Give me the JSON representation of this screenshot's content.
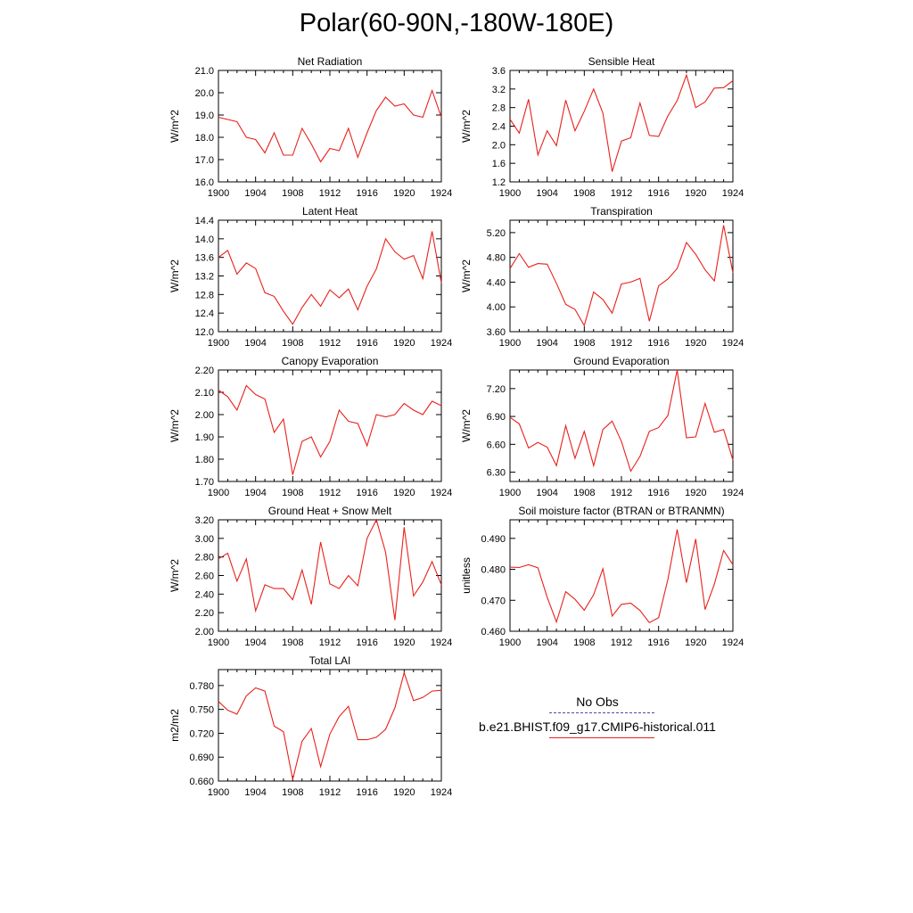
{
  "page": {
    "title": "Polar(60-90N,-180W-180E)"
  },
  "legend": {
    "obs_label": "No Obs",
    "model_label": "b.e21.BHIST.f09_g17.CMIP6-historical.011",
    "model_color": "#e8211c",
    "obs_color": "#4a4aa8"
  },
  "chart_data": [
    {
      "type": "line",
      "title": "Net Radiation",
      "ylabel": "W/m^2",
      "xlim": [
        1900,
        1924
      ],
      "ylim": [
        16.0,
        21.0
      ],
      "xticks": [
        1900,
        1904,
        1908,
        1912,
        1916,
        1920,
        1924
      ],
      "yticks": [
        "16.0",
        "17.0",
        "18.0",
        "19.0",
        "20.0",
        "21.0"
      ],
      "x": [
        1900,
        1901,
        1902,
        1903,
        1904,
        1905,
        1906,
        1907,
        1908,
        1909,
        1910,
        1911,
        1912,
        1913,
        1914,
        1915,
        1916,
        1917,
        1918,
        1919,
        1920,
        1921,
        1922,
        1923,
        1924
      ],
      "series": [
        {
          "color": "#e8211c",
          "values": [
            18.9,
            18.8,
            18.7,
            18.0,
            17.9,
            17.3,
            18.2,
            17.2,
            17.2,
            18.4,
            17.7,
            16.9,
            17.5,
            17.4,
            18.4,
            17.1,
            18.2,
            19.2,
            19.8,
            19.4,
            19.5,
            19.0,
            18.9,
            20.1,
            18.9
          ]
        }
      ]
    },
    {
      "type": "line",
      "title": "Sensible Heat",
      "ylabel": "W/m^2",
      "xlim": [
        1900,
        1924
      ],
      "ylim": [
        1.2,
        3.6
      ],
      "xticks": [
        1900,
        1904,
        1908,
        1912,
        1916,
        1920,
        1924
      ],
      "yticks": [
        "1.2",
        "1.6",
        "2.0",
        "2.4",
        "2.8",
        "3.2",
        "3.6"
      ],
      "x": [
        1900,
        1901,
        1902,
        1903,
        1904,
        1905,
        1906,
        1907,
        1908,
        1909,
        1910,
        1911,
        1912,
        1913,
        1914,
        1915,
        1916,
        1917,
        1918,
        1919,
        1920,
        1921,
        1922,
        1923,
        1924
      ],
      "series": [
        {
          "color": "#e8211c",
          "values": [
            2.55,
            2.25,
            2.98,
            1.78,
            2.3,
            1.98,
            2.96,
            2.3,
            2.72,
            3.2,
            2.68,
            1.42,
            2.08,
            2.15,
            2.9,
            2.2,
            2.18,
            2.62,
            2.95,
            3.5,
            2.8,
            2.92,
            3.22,
            3.23,
            3.38
          ]
        }
      ]
    },
    {
      "type": "line",
      "title": "Latent Heat",
      "ylabel": "W/m^2",
      "xlim": [
        1900,
        1924
      ],
      "ylim": [
        12.0,
        14.4
      ],
      "xticks": [
        1900,
        1904,
        1908,
        1912,
        1916,
        1920,
        1924
      ],
      "yticks": [
        "12.0",
        "12.4",
        "12.8",
        "13.2",
        "13.6",
        "14.0",
        "14.4"
      ],
      "x": [
        1900,
        1901,
        1902,
        1903,
        1904,
        1905,
        1906,
        1907,
        1908,
        1909,
        1910,
        1911,
        1912,
        1913,
        1914,
        1915,
        1916,
        1917,
        1918,
        1919,
        1920,
        1921,
        1922,
        1923,
        1924
      ],
      "series": [
        {
          "color": "#e8211c",
          "values": [
            13.6,
            13.75,
            13.24,
            13.48,
            13.36,
            12.84,
            12.76,
            12.44,
            12.16,
            12.52,
            12.8,
            12.55,
            12.9,
            12.73,
            12.92,
            12.47,
            12.98,
            13.35,
            14.0,
            13.72,
            13.56,
            13.64,
            13.14,
            14.16,
            13.05
          ]
        }
      ]
    },
    {
      "type": "line",
      "title": "Transpiration",
      "ylabel": "W/m^2",
      "xlim": [
        1900,
        1924
      ],
      "ylim": [
        3.6,
        5.4
      ],
      "xticks": [
        1900,
        1904,
        1908,
        1912,
        1916,
        1920,
        1924
      ],
      "yticks": [
        "3.60",
        "4.00",
        "4.40",
        "4.80",
        "5.20"
      ],
      "x": [
        1900,
        1901,
        1902,
        1903,
        1904,
        1905,
        1906,
        1907,
        1908,
        1909,
        1910,
        1911,
        1912,
        1913,
        1914,
        1915,
        1916,
        1917,
        1918,
        1919,
        1920,
        1921,
        1922,
        1923,
        1924
      ],
      "series": [
        {
          "color": "#e8211c",
          "values": [
            4.62,
            4.86,
            4.64,
            4.7,
            4.69,
            4.38,
            4.04,
            3.96,
            3.7,
            4.24,
            4.12,
            3.9,
            4.37,
            4.4,
            4.46,
            3.77,
            4.34,
            4.45,
            4.62,
            5.04,
            4.85,
            4.6,
            4.42,
            5.32,
            4.55
          ]
        }
      ]
    },
    {
      "type": "line",
      "title": "Canopy Evaporation",
      "ylabel": "W/m^2",
      "xlim": [
        1900,
        1924
      ],
      "ylim": [
        1.7,
        2.2
      ],
      "xticks": [
        1900,
        1904,
        1908,
        1912,
        1916,
        1920,
        1924
      ],
      "yticks": [
        "1.70",
        "1.80",
        "1.90",
        "2.00",
        "2.10",
        "2.20"
      ],
      "x": [
        1900,
        1901,
        1902,
        1903,
        1904,
        1905,
        1906,
        1907,
        1908,
        1909,
        1910,
        1911,
        1912,
        1913,
        1914,
        1915,
        1916,
        1917,
        1918,
        1919,
        1920,
        1921,
        1922,
        1923,
        1924
      ],
      "series": [
        {
          "color": "#e8211c",
          "values": [
            2.11,
            2.08,
            2.02,
            2.13,
            2.09,
            2.07,
            1.92,
            1.98,
            1.73,
            1.88,
            1.9,
            1.81,
            1.88,
            2.02,
            1.97,
            1.96,
            1.86,
            2.0,
            1.99,
            2.0,
            2.05,
            2.02,
            2.0,
            2.06,
            2.04
          ]
        }
      ]
    },
    {
      "type": "line",
      "title": "Ground Evaporation",
      "ylabel": "W/m^2",
      "xlim": [
        1900,
        1924
      ],
      "ylim": [
        6.2,
        7.4
      ],
      "xticks": [
        1900,
        1904,
        1908,
        1912,
        1916,
        1920,
        1924
      ],
      "yticks": [
        "6.30",
        "6.60",
        "6.90",
        "7.20"
      ],
      "x": [
        1900,
        1901,
        1902,
        1903,
        1904,
        1905,
        1906,
        1907,
        1908,
        1909,
        1910,
        1911,
        1912,
        1913,
        1914,
        1915,
        1916,
        1917,
        1918,
        1919,
        1920,
        1921,
        1922,
        1923,
        1924
      ],
      "series": [
        {
          "color": "#e8211c",
          "values": [
            6.89,
            6.82,
            6.56,
            6.62,
            6.57,
            6.37,
            6.8,
            6.45,
            6.74,
            6.37,
            6.76,
            6.85,
            6.63,
            6.31,
            6.47,
            6.74,
            6.78,
            6.91,
            7.4,
            6.67,
            6.68,
            7.04,
            6.73,
            6.76,
            6.43
          ]
        }
      ]
    },
    {
      "type": "line",
      "title": "Ground Heat + Snow Melt",
      "ylabel": "W/m^2",
      "xlim": [
        1900,
        1924
      ],
      "ylim": [
        2.0,
        3.2
      ],
      "xticks": [
        1900,
        1904,
        1908,
        1912,
        1916,
        1920,
        1924
      ],
      "yticks": [
        "2.00",
        "2.20",
        "2.40",
        "2.60",
        "2.80",
        "3.00",
        "3.20"
      ],
      "x": [
        1900,
        1901,
        1902,
        1903,
        1904,
        1905,
        1906,
        1907,
        1908,
        1909,
        1910,
        1911,
        1912,
        1913,
        1914,
        1915,
        1916,
        1917,
        1918,
        1919,
        1920,
        1921,
        1922,
        1923,
        1924
      ],
      "series": [
        {
          "color": "#e8211c",
          "values": [
            2.78,
            2.84,
            2.54,
            2.78,
            2.22,
            2.5,
            2.46,
            2.46,
            2.34,
            2.66,
            2.29,
            2.96,
            2.51,
            2.46,
            2.6,
            2.49,
            3.0,
            3.2,
            2.85,
            2.12,
            3.12,
            2.38,
            2.53,
            2.75,
            2.5
          ]
        }
      ]
    },
    {
      "type": "line",
      "title": "Soil moisture factor (BTRAN or BTRANMN)",
      "ylabel": "unitless",
      "xlim": [
        1900,
        1924
      ],
      "ylim": [
        0.46,
        0.496
      ],
      "xticks": [
        1900,
        1904,
        1908,
        1912,
        1916,
        1920,
        1924
      ],
      "yticks": [
        "0.460",
        "0.470",
        "0.480",
        "0.490"
      ],
      "x": [
        1900,
        1901,
        1902,
        1903,
        1904,
        1905,
        1906,
        1907,
        1908,
        1909,
        1910,
        1911,
        1912,
        1913,
        1914,
        1915,
        1916,
        1917,
        1918,
        1919,
        1920,
        1921,
        1922,
        1923,
        1924
      ],
      "series": [
        {
          "color": "#e8211c",
          "values": [
            0.4807,
            0.4806,
            0.4815,
            0.4805,
            0.471,
            0.463,
            0.4728,
            0.4703,
            0.4668,
            0.4718,
            0.4802,
            0.4649,
            0.4687,
            0.4691,
            0.4667,
            0.4628,
            0.4644,
            0.4768,
            0.4929,
            0.4757,
            0.4898,
            0.467,
            0.4752,
            0.4861,
            0.4815
          ]
        }
      ]
    },
    {
      "type": "line",
      "title": "Total LAI",
      "ylabel": "m2/m2",
      "xlim": [
        1900,
        1924
      ],
      "ylim": [
        0.66,
        0.8
      ],
      "xticks": [
        1900,
        1904,
        1908,
        1912,
        1916,
        1920,
        1924
      ],
      "yticks": [
        "0.660",
        "0.690",
        "0.720",
        "0.750",
        "0.780"
      ],
      "x": [
        1900,
        1901,
        1902,
        1903,
        1904,
        1905,
        1906,
        1907,
        1908,
        1909,
        1910,
        1911,
        1912,
        1913,
        1914,
        1915,
        1916,
        1917,
        1918,
        1919,
        1920,
        1921,
        1922,
        1923,
        1924
      ],
      "series": [
        {
          "color": "#e8211c",
          "values": [
            0.76,
            0.749,
            0.744,
            0.767,
            0.777,
            0.773,
            0.729,
            0.722,
            0.662,
            0.71,
            0.726,
            0.678,
            0.719,
            0.741,
            0.754,
            0.712,
            0.712,
            0.715,
            0.725,
            0.752,
            0.796,
            0.761,
            0.765,
            0.773,
            0.774
          ]
        }
      ]
    }
  ]
}
